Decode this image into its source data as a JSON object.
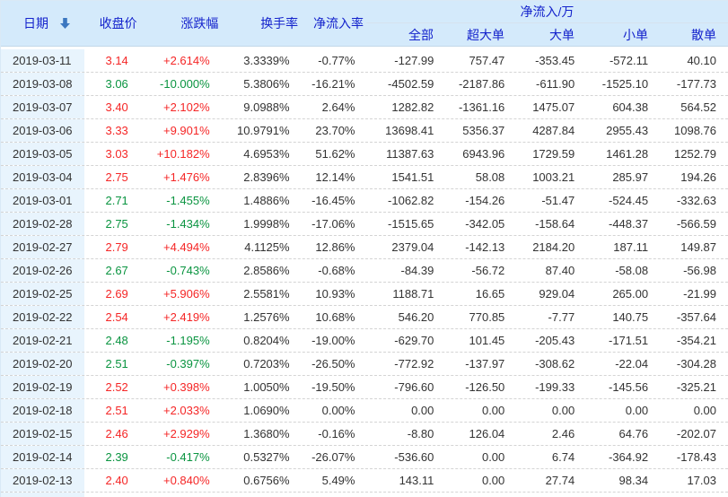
{
  "colors": {
    "up": "#f52626",
    "down": "#0a9440",
    "neutral": "#333333",
    "header_text": "#1423cc",
    "header_bg": "#d4eafb",
    "date_col_bg": "#e8f4fd",
    "sort_icon": "#3b77c0"
  },
  "table": {
    "header": {
      "date": "日期",
      "close": "收盘价",
      "change": "涨跌幅",
      "turnover": "换手率",
      "inflow_rate": "净流入率",
      "inflow_group": "净流入/万",
      "sub_columns": [
        "全部",
        "超大单",
        "大单",
        "小单",
        "散单"
      ],
      "sort": {
        "column": "日期",
        "direction": "descending"
      }
    },
    "rows": [
      {
        "date": "2019-03-11",
        "close": "3.14",
        "change": "+2.614%",
        "dir": "up",
        "turnover": "3.3339%",
        "inflow_rate": "-0.77%",
        "all": "-127.99",
        "super_large": "757.47",
        "large": "-353.45",
        "small": "-572.11",
        "retail": "40.10"
      },
      {
        "date": "2019-03-08",
        "close": "3.06",
        "change": "-10.000%",
        "dir": "down",
        "turnover": "5.3806%",
        "inflow_rate": "-16.21%",
        "all": "-4502.59",
        "super_large": "-2187.86",
        "large": "-611.90",
        "small": "-1525.10",
        "retail": "-177.73"
      },
      {
        "date": "2019-03-07",
        "close": "3.40",
        "change": "+2.102%",
        "dir": "up",
        "turnover": "9.0988%",
        "inflow_rate": "2.64%",
        "all": "1282.82",
        "super_large": "-1361.16",
        "large": "1475.07",
        "small": "604.38",
        "retail": "564.52"
      },
      {
        "date": "2019-03-06",
        "close": "3.33",
        "change": "+9.901%",
        "dir": "up",
        "turnover": "10.9791%",
        "inflow_rate": "23.70%",
        "all": "13698.41",
        "super_large": "5356.37",
        "large": "4287.84",
        "small": "2955.43",
        "retail": "1098.76"
      },
      {
        "date": "2019-03-05",
        "close": "3.03",
        "change": "+10.182%",
        "dir": "up",
        "turnover": "4.6953%",
        "inflow_rate": "51.62%",
        "all": "11387.63",
        "super_large": "6943.96",
        "large": "1729.59",
        "small": "1461.28",
        "retail": "1252.79"
      },
      {
        "date": "2019-03-04",
        "close": "2.75",
        "change": "+1.476%",
        "dir": "up",
        "turnover": "2.8396%",
        "inflow_rate": "12.14%",
        "all": "1541.51",
        "super_large": "58.08",
        "large": "1003.21",
        "small": "285.97",
        "retail": "194.26"
      },
      {
        "date": "2019-03-01",
        "close": "2.71",
        "change": "-1.455%",
        "dir": "down",
        "turnover": "1.4886%",
        "inflow_rate": "-16.45%",
        "all": "-1062.82",
        "super_large": "-154.26",
        "large": "-51.47",
        "small": "-524.45",
        "retail": "-332.63"
      },
      {
        "date": "2019-02-28",
        "close": "2.75",
        "change": "-1.434%",
        "dir": "down",
        "turnover": "1.9998%",
        "inflow_rate": "-17.06%",
        "all": "-1515.65",
        "super_large": "-342.05",
        "large": "-158.64",
        "small": "-448.37",
        "retail": "-566.59"
      },
      {
        "date": "2019-02-27",
        "close": "2.79",
        "change": "+4.494%",
        "dir": "up",
        "turnover": "4.1125%",
        "inflow_rate": "12.86%",
        "all": "2379.04",
        "super_large": "-142.13",
        "large": "2184.20",
        "small": "187.11",
        "retail": "149.87"
      },
      {
        "date": "2019-02-26",
        "close": "2.67",
        "change": "-0.743%",
        "dir": "down",
        "turnover": "2.8586%",
        "inflow_rate": "-0.68%",
        "all": "-84.39",
        "super_large": "-56.72",
        "large": "87.40",
        "small": "-58.08",
        "retail": "-56.98"
      },
      {
        "date": "2019-02-25",
        "close": "2.69",
        "change": "+5.906%",
        "dir": "up",
        "turnover": "2.5581%",
        "inflow_rate": "10.93%",
        "all": "1188.71",
        "super_large": "16.65",
        "large": "929.04",
        "small": "265.00",
        "retail": "-21.99"
      },
      {
        "date": "2019-02-22",
        "close": "2.54",
        "change": "+2.419%",
        "dir": "up",
        "turnover": "1.2576%",
        "inflow_rate": "10.68%",
        "all": "546.20",
        "super_large": "770.85",
        "large": "-7.77",
        "small": "140.75",
        "retail": "-357.64"
      },
      {
        "date": "2019-02-21",
        "close": "2.48",
        "change": "-1.195%",
        "dir": "down",
        "turnover": "0.8204%",
        "inflow_rate": "-19.00%",
        "all": "-629.70",
        "super_large": "101.45",
        "large": "-205.43",
        "small": "-171.51",
        "retail": "-354.21"
      },
      {
        "date": "2019-02-20",
        "close": "2.51",
        "change": "-0.397%",
        "dir": "down",
        "turnover": "0.7203%",
        "inflow_rate": "-26.50%",
        "all": "-772.92",
        "super_large": "-137.97",
        "large": "-308.62",
        "small": "-22.04",
        "retail": "-304.28"
      },
      {
        "date": "2019-02-19",
        "close": "2.52",
        "change": "+0.398%",
        "dir": "up",
        "turnover": "1.0050%",
        "inflow_rate": "-19.50%",
        "all": "-796.60",
        "super_large": "-126.50",
        "large": "-199.33",
        "small": "-145.56",
        "retail": "-325.21"
      },
      {
        "date": "2019-02-18",
        "close": "2.51",
        "change": "+2.033%",
        "dir": "up",
        "turnover": "1.0690%",
        "inflow_rate": "0.00%",
        "all": "0.00",
        "super_large": "0.00",
        "large": "0.00",
        "small": "0.00",
        "retail": "0.00"
      },
      {
        "date": "2019-02-15",
        "close": "2.46",
        "change": "+2.929%",
        "dir": "up",
        "turnover": "1.3680%",
        "inflow_rate": "-0.16%",
        "all": "-8.80",
        "super_large": "126.04",
        "large": "2.46",
        "small": "64.76",
        "retail": "-202.07"
      },
      {
        "date": "2019-02-14",
        "close": "2.39",
        "change": "-0.417%",
        "dir": "down",
        "turnover": "0.5327%",
        "inflow_rate": "-26.07%",
        "all": "-536.60",
        "super_large": "0.00",
        "large": "6.74",
        "small": "-364.92",
        "retail": "-178.43"
      },
      {
        "date": "2019-02-13",
        "close": "2.40",
        "change": "+0.840%",
        "dir": "up",
        "turnover": "0.6756%",
        "inflow_rate": "5.49%",
        "all": "143.11",
        "super_large": "0.00",
        "large": "27.74",
        "small": "98.34",
        "retail": "17.03"
      }
    ]
  }
}
